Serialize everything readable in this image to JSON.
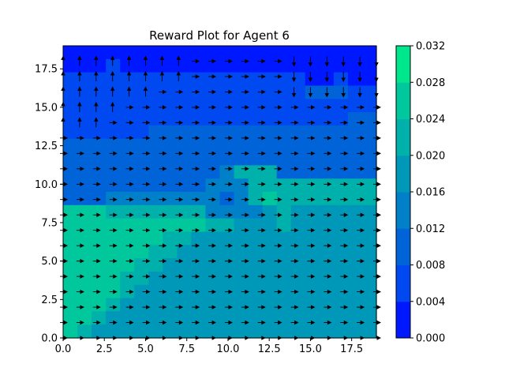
{
  "chart_data": {
    "type": "heatmap",
    "subtype": "filled-contour-with-quiver",
    "title": "Reward Plot for Agent 6",
    "xlabel": "",
    "ylabel": "",
    "xlim": [
      0,
      19
    ],
    "ylim": [
      0,
      19
    ],
    "x_ticks": [
      "0.0",
      "2.5",
      "5.0",
      "7.5",
      "10.0",
      "12.5",
      "15.0",
      "17.5"
    ],
    "y_ticks": [
      "0.0",
      "2.5",
      "5.0",
      "7.5",
      "10.0",
      "12.5",
      "15.0",
      "17.5"
    ],
    "colorbar": {
      "min": 0.0,
      "max": 0.032,
      "levels": [
        0.0,
        0.004,
        0.008,
        0.012,
        0.016,
        0.02,
        0.024,
        0.028,
        0.032
      ],
      "tick_labels": [
        "0.000",
        "0.004",
        "0.008",
        "0.012",
        "0.016",
        "0.020",
        "0.024",
        "0.028",
        "0.032"
      ],
      "band_colors": [
        "#0018ff",
        "#0048f0",
        "#0064d8",
        "#0080c8",
        "#0098b8",
        "#00b0aa",
        "#00c89c",
        "#00e68c"
      ]
    },
    "grid": false,
    "grid_size": 20,
    "z_rows_top_to_bottom": [
      "0000000000000000000000",
      "0001000000000000000000",
      "1111111111111111100100",
      "1111111111111111122211",
      "1111111111111111111111",
      "1111111111111111111122",
      "1111112222222222222222",
      "2222222222222222222222",
      "2222222222222222222222",
      "2222222222235552222222",
      "2222222222333555555555",
      "2223333333323565555555",
      "6665555555333345444444",
      "6666666666554445444444",
      "6666666554444444444444",
      "6666665544444444444444",
      "6666655444444444444444",
      "6666554444444444444444",
      "6666544444444444444444",
      "6665444444444444444444",
      "6654444444444444444444",
      "6544444444444444444444"
    ],
    "arrow_rows_top_to_bottom": [
      "uuuuuuuuurrrrrddddddd",
      "uuuuuuuurrrrrrddddddd",
      "uuuuuuuurrrrrrddddddd",
      "uuuuuuuurrrrrrddddddd",
      "uuuuuurrrrrrrrddddddd",
      "uuuurrrrrrrrrrrrrrrrr",
      "uuurrrrrrrrrrrrrrrrrr",
      "rrrrrrrrrrrrrrrrrrrrr",
      "rrrrrrrrrrrrrrrrrrrrr",
      "rrrrrrrrrrrrrrrrrrrrr",
      "rrrrrrrrrrrrrrrrrrrrr",
      "rrrrrrrrrrrrrrrrrrrrr",
      "rrrrrrrrrrrrrrrrrrrrr",
      "rrrrrrrrrrrrrrrrrrrrr",
      "rrrrrrrrrrrrrrrrrrrrr",
      "rrrrrrrrrrrrrrrrrrrrr",
      "rrrrrrrrrrrrrrrrrrrrr",
      "rrrrrrrrrrrrrrrrrrrrr",
      "rrrrrrrrrrrrrrrrrrrrr",
      "rrrrrrrrrrrrrrrrrrrrr",
      "rrrrrrrrrrrrrrrrrrrrr"
    ]
  }
}
